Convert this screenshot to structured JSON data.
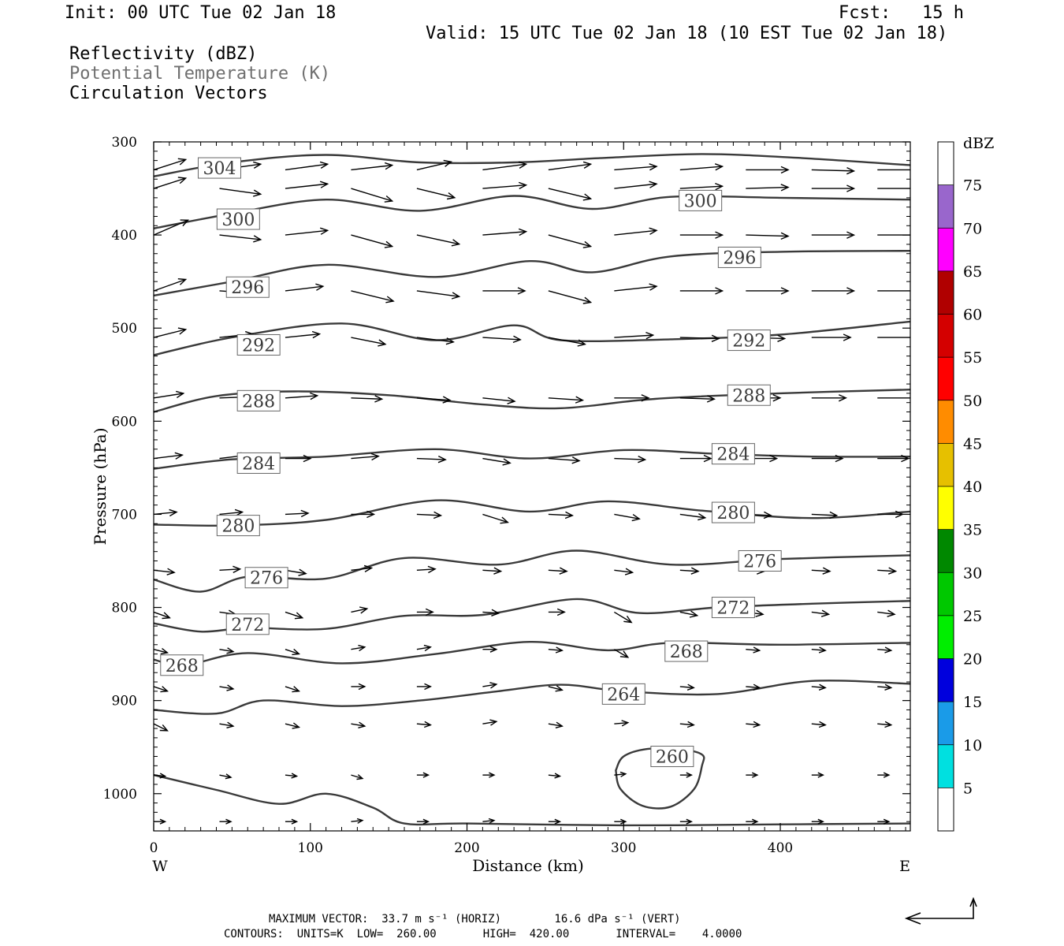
{
  "header": {
    "init": "Init: 00 UTC Tue 02 Jan 18",
    "fcst": "Fcst:   15 h",
    "valid": "Valid: 15 UTC Tue 02 Jan 18 (10 EST Tue 02 Jan 18)",
    "field1": "Reflectivity (dBZ)",
    "field2": "Potential Temperature (K)",
    "field3": "Circulation Vectors"
  },
  "footer": {
    "line1": "MAXIMUM VECTOR:  33.7 m s⁻¹ (HORIZ)        16.6 dPa s⁻¹ (VERT)",
    "line2": "CONTOURS:  UNITS=K  LOW=  260.00       HIGH=  420.00       INTERVAL=    4.0000"
  },
  "colors": {
    "contour": "#3a3a3a",
    "vector": "#000000",
    "scale": [
      "#ffffff",
      "#00e0e0",
      "#1a9be8",
      "#0000dd",
      "#00ee00",
      "#00c800",
      "#008800",
      "#ffff00",
      "#e6c000",
      "#ff8c00",
      "#ff0000",
      "#d40000",
      "#b00000",
      "#ff00ff",
      "#9966cc",
      "#ffffff"
    ]
  },
  "chart_data": {
    "type": "cross-section",
    "xlabel": "Distance (km)",
    "ylabel": "Pressure (hPa)",
    "xlim": [
      0,
      483
    ],
    "ylim": [
      1040,
      300
    ],
    "xticks": [
      0,
      100,
      200,
      300,
      400
    ],
    "yticks": [
      300,
      400,
      500,
      600,
      700,
      800,
      900,
      1000
    ],
    "left_end_label": "W",
    "right_end_label": "E",
    "colorbar": {
      "title": "dBZ",
      "labels": [
        "5",
        "10",
        "15",
        "20",
        "25",
        "30",
        "35",
        "40",
        "45",
        "50",
        "55",
        "60",
        "65",
        "70",
        "75"
      ]
    },
    "theta_contours": [
      {
        "label": "304",
        "x": [
          0,
          50,
          110,
          170,
          230,
          290,
          350,
          410,
          483
        ],
        "p": [
          337,
          322,
          314,
          322,
          322,
          317,
          313,
          317,
          325
        ],
        "label_pos": [
          [
            42,
            328
          ]
        ]
      },
      {
        "label": "300",
        "x": [
          0,
          50,
          110,
          170,
          230,
          280,
          330,
          400,
          483
        ],
        "p": [
          393,
          377,
          362,
          374,
          358,
          372,
          359,
          360,
          362
        ],
        "label_pos": [
          [
            54,
            383
          ],
          [
            349,
            363
          ]
        ]
      },
      {
        "label": "296",
        "x": [
          0,
          50,
          110,
          180,
          240,
          280,
          330,
          400,
          483
        ],
        "p": [
          465,
          450,
          432,
          445,
          428,
          440,
          423,
          418,
          417
        ],
        "label_pos": [
          [
            60,
            456
          ],
          [
            374,
            424
          ]
        ]
      },
      {
        "label": "292",
        "x": [
          0,
          50,
          120,
          180,
          230,
          260,
          330,
          400,
          483
        ],
        "p": [
          529,
          510,
          495,
          513,
          497,
          513,
          512,
          507,
          493
        ],
        "label_pos": [
          [
            67,
            518
          ],
          [
            380,
            513
          ]
        ]
      },
      {
        "label": "288",
        "x": [
          0,
          40,
          90,
          150,
          210,
          260,
          320,
          400,
          483
        ],
        "p": [
          590,
          573,
          568,
          572,
          582,
          586,
          576,
          570,
          566
        ],
        "label_pos": [
          [
            67,
            578
          ],
          [
            380,
            572
          ]
        ]
      },
      {
        "label": "284",
        "x": [
          0,
          50,
          110,
          180,
          240,
          300,
          360,
          420,
          483
        ],
        "p": [
          651,
          641,
          638,
          630,
          640,
          631,
          635,
          638,
          638
        ],
        "label_pos": [
          [
            67,
            645
          ],
          [
            370,
            635
          ]
        ]
      },
      {
        "label": "280",
        "x": [
          0,
          50,
          110,
          180,
          240,
          290,
          350,
          420,
          483
        ],
        "p": [
          711,
          712,
          706,
          685,
          697,
          686,
          696,
          704,
          697
        ],
        "label_pos": [
          [
            54,
            712
          ],
          [
            370,
            698
          ]
        ]
      },
      {
        "label": "276",
        "x": [
          0,
          30,
          60,
          110,
          160,
          220,
          270,
          330,
          400,
          483
        ],
        "p": [
          770,
          783,
          767,
          769,
          747,
          754,
          739,
          754,
          748,
          744
        ],
        "label_pos": [
          [
            72,
            768
          ],
          [
            387,
            750
          ]
        ]
      },
      {
        "label": "272",
        "x": [
          0,
          30,
          60,
          110,
          160,
          210,
          270,
          310,
          360,
          420,
          483
        ],
        "p": [
          817,
          826,
          822,
          823,
          809,
          808,
          791,
          806,
          800,
          796,
          793
        ],
        "label_pos": [
          [
            60,
            818
          ],
          [
            370,
            800
          ]
        ]
      },
      {
        "label": "268",
        "x": [
          0,
          20,
          60,
          120,
          180,
          240,
          290,
          330,
          400,
          483
        ],
        "p": [
          856,
          862,
          849,
          860,
          850,
          837,
          846,
          838,
          840,
          838
        ],
        "label_pos": [
          [
            18,
            862
          ],
          [
            340,
            847
          ]
        ]
      },
      {
        "label": "264",
        "x": [
          0,
          40,
          70,
          120,
          170,
          220,
          260,
          300,
          360,
          420,
          483
        ],
        "p": [
          910,
          914,
          900,
          906,
          900,
          890,
          883,
          890,
          893,
          879,
          882
        ],
        "label_pos": [
          [
            300,
            893
          ]
        ]
      },
      {
        "label": "260",
        "closed": true,
        "x": [
          295,
          300,
          315,
          335,
          350,
          350,
          345,
          330,
          312,
          298,
          295
        ],
        "p": [
          975,
          960,
          952,
          952,
          958,
          970,
          995,
          1014,
          1013,
          995,
          975
        ],
        "label_pos": [
          [
            331,
            960
          ]
        ]
      },
      {
        "label": "",
        "x": [
          0,
          40,
          80,
          110,
          140,
          160,
          200,
          300,
          400,
          483
        ],
        "p": [
          980,
          996,
          1011,
          1000,
          1015,
          1032,
          1032,
          1034,
          1033,
          1032
        ],
        "label_pos": []
      }
    ],
    "vector_rows": [
      {
        "p": 330,
        "x": [
          0,
          42,
          84,
          126,
          168,
          210,
          252,
          294,
          336,
          378,
          420,
          462
        ],
        "u": [
          28,
          36,
          37,
          36,
          30,
          38,
          37,
          37,
          37,
          37,
          37,
          37
        ],
        "w": [
          -9,
          -5,
          -5,
          -4,
          -7,
          -5,
          -5,
          -3,
          -3,
          0,
          1,
          0
        ]
      },
      {
        "p": 350,
        "x": [
          0,
          42,
          84,
          126,
          168,
          210,
          252,
          294,
          336,
          378,
          420,
          462
        ],
        "u": [
          28,
          36,
          37,
          36,
          33,
          38,
          37,
          37,
          37,
          37,
          37,
          37
        ],
        "w": [
          -9,
          5,
          -4,
          11,
          8,
          -3,
          9,
          -4,
          -2,
          -1,
          0,
          0
        ]
      },
      {
        "p": 400,
        "x": [
          0,
          42,
          84,
          126,
          168,
          210,
          252,
          294,
          336,
          378,
          420,
          462
        ],
        "u": [
          30,
          36,
          37,
          36,
          37,
          38,
          37,
          37,
          37,
          37,
          37,
          37
        ],
        "w": [
          -13,
          4,
          -4,
          10,
          8,
          -3,
          10,
          -4,
          0,
          1,
          0,
          0
        ]
      },
      {
        "p": 460,
        "x": [
          0,
          42,
          84,
          126,
          168,
          210,
          252,
          294,
          336,
          378,
          420,
          462
        ],
        "u": [
          28,
          30,
          33,
          37,
          37,
          37,
          37,
          37,
          37,
          37,
          37,
          37
        ],
        "w": [
          -10,
          2,
          -4,
          9,
          5,
          0,
          10,
          -4,
          0,
          0,
          0,
          0
        ]
      },
      {
        "p": 510,
        "x": [
          0,
          42,
          84,
          126,
          168,
          210,
          252,
          294,
          336,
          378,
          420,
          462
        ],
        "u": [
          28,
          29,
          30,
          30,
          32,
          33,
          32,
          34,
          34,
          34,
          34,
          34
        ],
        "w": [
          -7,
          -3,
          -3,
          6,
          4,
          2,
          6,
          -2,
          1,
          1,
          0,
          0
        ]
      },
      {
        "p": 575,
        "x": [
          0,
          42,
          84,
          126,
          168,
          210,
          252,
          294,
          336,
          378,
          420,
          462
        ],
        "u": [
          26,
          28,
          28,
          27,
          29,
          28,
          30,
          30,
          30,
          30,
          30,
          30
        ],
        "w": [
          -4,
          -1,
          -2,
          1,
          2,
          3,
          2,
          0,
          1,
          0,
          0,
          0
        ]
      },
      {
        "p": 640,
        "x": [
          0,
          42,
          84,
          126,
          168,
          210,
          252,
          294,
          336,
          378,
          420,
          462
        ],
        "u": [
          25,
          25,
          22,
          24,
          25,
          24,
          27,
          27,
          27,
          27,
          27,
          27
        ],
        "w": [
          -3,
          -3,
          0,
          -2,
          1,
          4,
          2,
          1,
          0,
          0,
          0,
          0
        ]
      },
      {
        "p": 700,
        "x": [
          0,
          42,
          84,
          126,
          168,
          210,
          252,
          294,
          336,
          378,
          420,
          462
        ],
        "u": [
          20,
          20,
          20,
          20,
          21,
          22,
          21,
          22,
          22,
          22,
          22,
          22
        ],
        "w": [
          -2,
          -2,
          -1,
          0,
          1,
          7,
          1,
          4,
          3,
          1,
          1,
          0
        ]
      },
      {
        "p": 760,
        "x": [
          0,
          42,
          84,
          126,
          168,
          210,
          252,
          294,
          336,
          378,
          420,
          462
        ],
        "u": [
          18,
          18,
          18,
          18,
          16,
          16,
          16,
          16,
          16,
          16,
          16,
          16
        ],
        "w": [
          2,
          -1,
          3,
          -2,
          -1,
          1,
          1,
          2,
          1,
          1,
          1,
          1
        ]
      },
      {
        "p": 805,
        "x": [
          0,
          42,
          84,
          126,
          168,
          210,
          252,
          294,
          336,
          378,
          420,
          462
        ],
        "u": [
          14,
          14,
          15,
          14,
          14,
          14,
          14,
          15,
          15,
          15,
          15,
          15
        ],
        "w": [
          5,
          2,
          5,
          -3,
          0,
          1,
          0,
          9,
          3,
          2,
          2,
          2
        ]
      },
      {
        "p": 845,
        "x": [
          0,
          42,
          84,
          126,
          168,
          210,
          252,
          294,
          336,
          378,
          420,
          462
        ],
        "u": [
          12,
          12,
          12,
          12,
          12,
          12,
          12,
          12,
          12,
          12,
          12,
          12
        ],
        "w": [
          3,
          2,
          4,
          -2,
          -2,
          0,
          1,
          7,
          2,
          1,
          1,
          1
        ]
      },
      {
        "p": 885,
        "x": [
          0,
          42,
          84,
          126,
          168,
          210,
          252,
          294,
          336,
          378,
          420,
          462
        ],
        "u": [
          12,
          12,
          12,
          12,
          12,
          12,
          12,
          12,
          12,
          12,
          12,
          12
        ],
        "w": [
          4,
          2,
          4,
          0,
          0,
          -2,
          3,
          2,
          1,
          1,
          1,
          1
        ]
      },
      {
        "p": 925,
        "x": [
          0,
          42,
          84,
          126,
          168,
          210,
          252,
          294,
          336,
          378,
          420,
          462
        ],
        "u": [
          12,
          12,
          12,
          12,
          12,
          12,
          12,
          12,
          12,
          12,
          12,
          12
        ],
        "w": [
          6,
          2,
          3,
          2,
          1,
          -2,
          2,
          -1,
          1,
          1,
          1,
          1
        ]
      },
      {
        "p": 980,
        "x": [
          0,
          42,
          84,
          126,
          168,
          210,
          252,
          294,
          336,
          378,
          420,
          462
        ],
        "u": [
          10,
          10,
          10,
          10,
          10,
          10,
          10,
          10,
          10,
          10,
          10,
          10
        ],
        "w": [
          1,
          2,
          1,
          3,
          0,
          0,
          1,
          -1,
          0,
          0,
          0,
          0
        ]
      },
      {
        "p": 1030,
        "x": [
          0,
          42,
          84,
          126,
          168,
          210,
          252,
          294,
          336,
          378,
          420,
          462
        ],
        "u": [
          10,
          10,
          10,
          10,
          10,
          10,
          10,
          10,
          10,
          10,
          10,
          10
        ],
        "w": [
          0,
          0,
          0,
          -1,
          0,
          -1,
          0,
          0,
          0,
          0,
          0,
          0
        ]
      }
    ]
  }
}
